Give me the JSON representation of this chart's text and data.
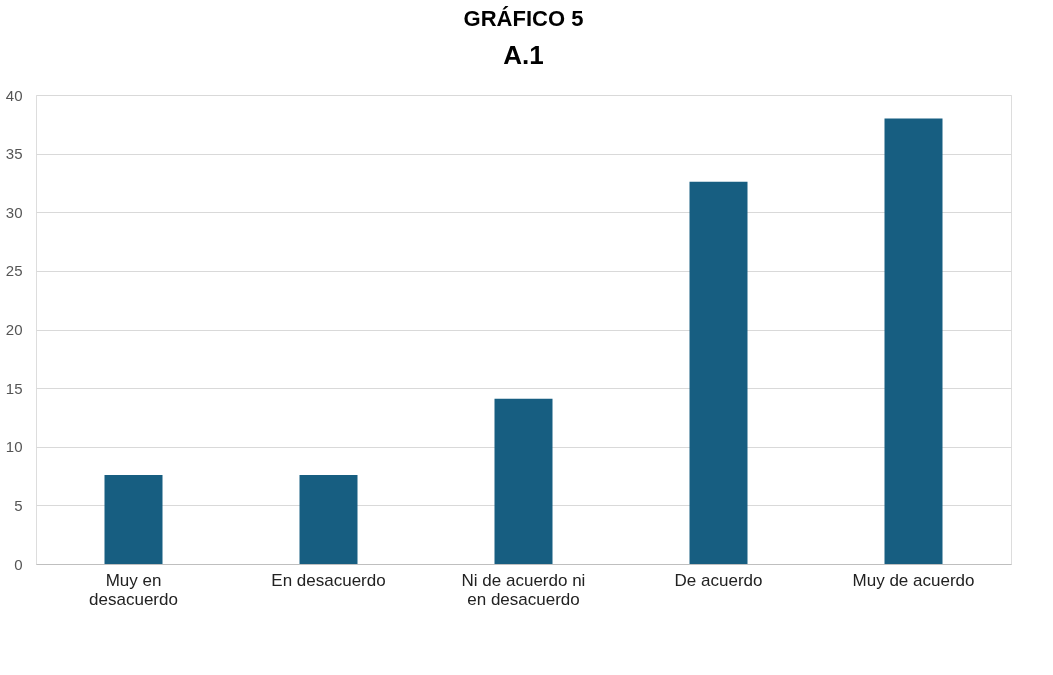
{
  "chart_data": {
    "type": "bar",
    "title": "GRÁFICO 5",
    "subtitle": "A.1",
    "categories": [
      "Muy en\ndesacuerdo",
      "En desacuerdo",
      "Ni de acuerdo ni\nen desacuerdo",
      "De acuerdo",
      "Muy de acuerdo"
    ],
    "values": [
      7.6,
      7.6,
      14.1,
      32.6,
      38.0
    ],
    "color": "#175e81",
    "ylim": [
      0,
      40
    ],
    "yticks": [
      0,
      5,
      10,
      15,
      20,
      25,
      30,
      35,
      40
    ],
    "grid": "y"
  }
}
